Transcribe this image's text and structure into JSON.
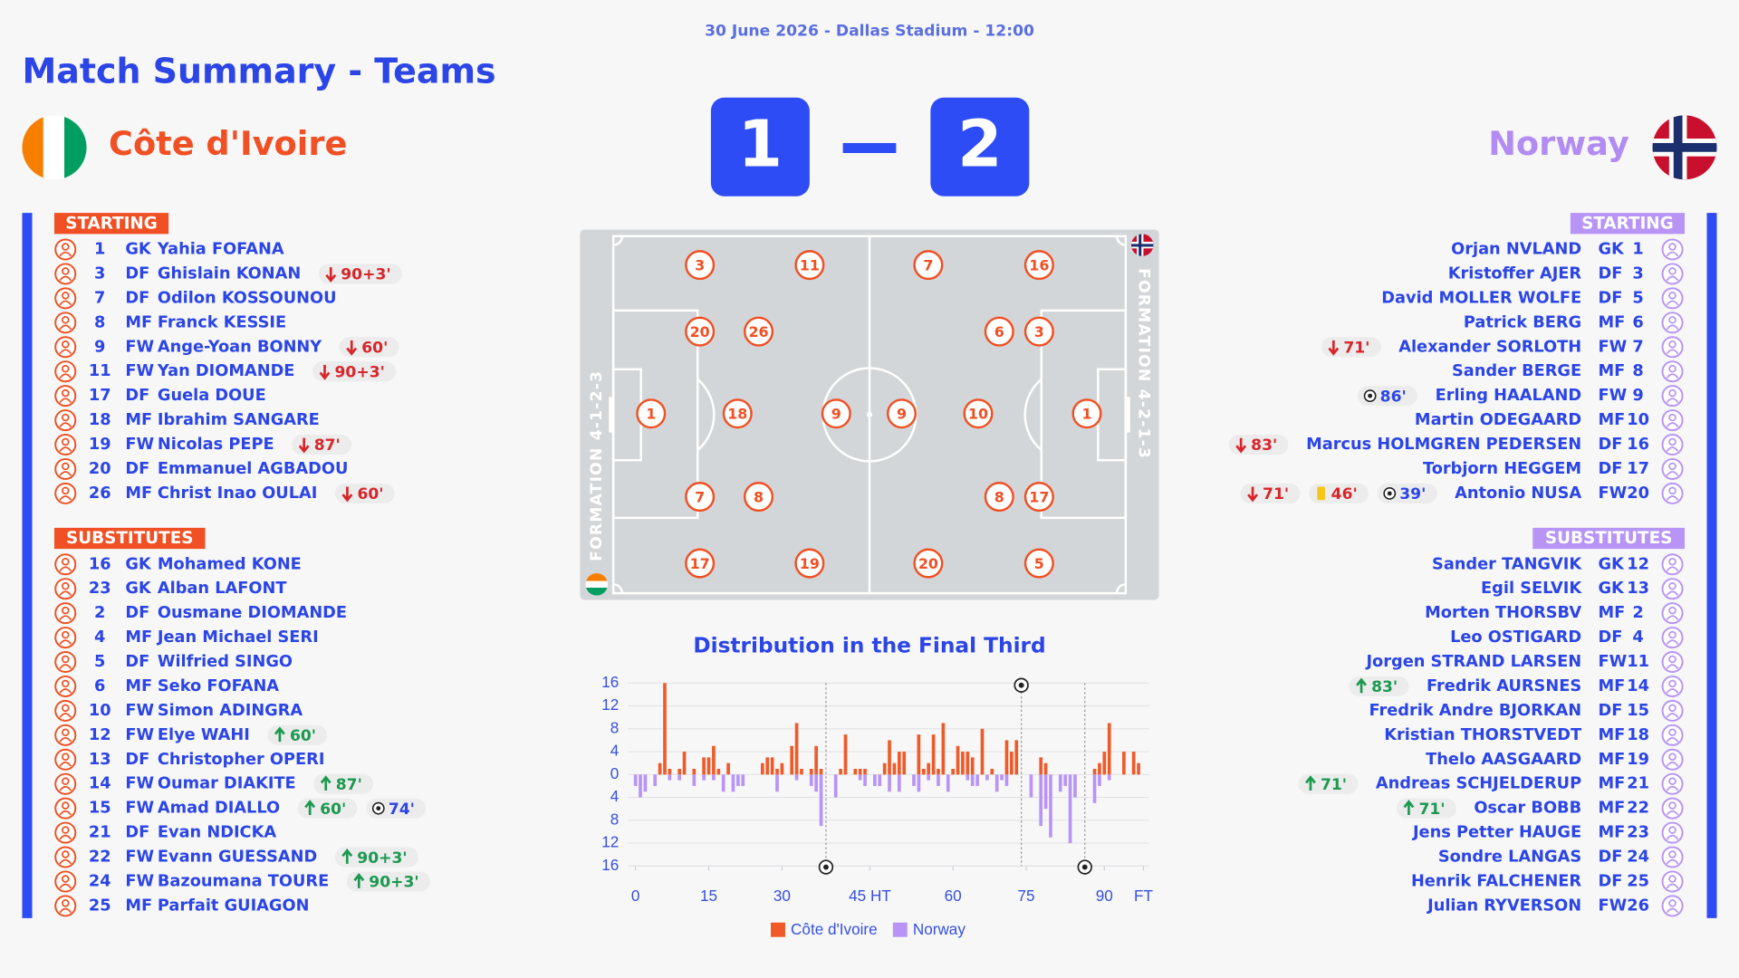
{
  "header": {
    "date_line": "30 June 2026 - Dallas Stadium - 12:00",
    "title": "Match Summary - Teams"
  },
  "score": {
    "home": 1,
    "away": 2
  },
  "home": {
    "name": "Côte d'Ivoire",
    "formation": "FORMATION 4-1-2-3",
    "starting_label": "STARTING",
    "substitutes_label": "SUBSTITUTES",
    "pitch_lines": [
      [
        1
      ],
      [
        3,
        20,
        7,
        17
      ],
      [
        18
      ],
      [
        26,
        8
      ],
      [
        11,
        9,
        19
      ]
    ],
    "starting": [
      {
        "number": 1,
        "position": "GK",
        "name": "Yahia FOFANA"
      },
      {
        "number": 3,
        "position": "DF",
        "name": "Ghislain KONAN",
        "events": [
          {
            "type": "out",
            "minute": "90+3'"
          }
        ]
      },
      {
        "number": 7,
        "position": "DF",
        "name": "Odilon KOSSOUNOU"
      },
      {
        "number": 8,
        "position": "MF",
        "name": "Franck KESSIE"
      },
      {
        "number": 9,
        "position": "FW",
        "name": "Ange-Yoan BONNY",
        "events": [
          {
            "type": "out",
            "minute": "60'"
          }
        ]
      },
      {
        "number": 11,
        "position": "FW",
        "name": "Yan DIOMANDE",
        "events": [
          {
            "type": "out",
            "minute": "90+3'"
          }
        ]
      },
      {
        "number": 17,
        "position": "DF",
        "name": "Guela DOUE"
      },
      {
        "number": 18,
        "position": "MF",
        "name": "Ibrahim SANGARE"
      },
      {
        "number": 19,
        "position": "FW",
        "name": "Nicolas PEPE",
        "events": [
          {
            "type": "out",
            "minute": "87'"
          }
        ]
      },
      {
        "number": 20,
        "position": "DF",
        "name": "Emmanuel AGBADOU"
      },
      {
        "number": 26,
        "position": "MF",
        "name": "Christ Inao OULAI",
        "events": [
          {
            "type": "out",
            "minute": "60'"
          }
        ]
      }
    ],
    "substitutes": [
      {
        "number": 16,
        "position": "GK",
        "name": "Mohamed KONE"
      },
      {
        "number": 23,
        "position": "GK",
        "name": "Alban LAFONT"
      },
      {
        "number": 2,
        "position": "DF",
        "name": "Ousmane DIOMANDE"
      },
      {
        "number": 4,
        "position": "MF",
        "name": "Jean Michael SERI"
      },
      {
        "number": 5,
        "position": "DF",
        "name": "Wilfried SINGO"
      },
      {
        "number": 6,
        "position": "MF",
        "name": "Seko FOFANA"
      },
      {
        "number": 10,
        "position": "FW",
        "name": "Simon ADINGRA"
      },
      {
        "number": 12,
        "position": "FW",
        "name": "Elye WAHI",
        "events": [
          {
            "type": "in",
            "minute": "60'"
          }
        ]
      },
      {
        "number": 13,
        "position": "DF",
        "name": "Christopher OPERI"
      },
      {
        "number": 14,
        "position": "FW",
        "name": "Oumar DIAKITE",
        "events": [
          {
            "type": "in",
            "minute": "87'"
          }
        ]
      },
      {
        "number": 15,
        "position": "FW",
        "name": "Amad DIALLO",
        "events": [
          {
            "type": "in",
            "minute": "60'"
          },
          {
            "type": "goal",
            "minute": "74'"
          }
        ]
      },
      {
        "number": 21,
        "position": "DF",
        "name": "Evan NDICKA"
      },
      {
        "number": 22,
        "position": "FW",
        "name": "Evann GUESSAND",
        "events": [
          {
            "type": "in",
            "minute": "90+3'"
          }
        ]
      },
      {
        "number": 24,
        "position": "FW",
        "name": "Bazoumana TOURE",
        "events": [
          {
            "type": "in",
            "minute": "90+3'"
          }
        ]
      },
      {
        "number": 25,
        "position": "MF",
        "name": "Parfait GUIAGON"
      }
    ]
  },
  "away": {
    "name": "Norway",
    "formation": "FORMATION 4-2-1-3",
    "starting_label": "STARTING",
    "substitutes_label": "SUBSTITUTES",
    "pitch_lines": [
      [
        1
      ],
      [
        16,
        3,
        17,
        5
      ],
      [
        6,
        8
      ],
      [
        10
      ],
      [
        7,
        9,
        20
      ]
    ],
    "starting": [
      {
        "number": 1,
        "position": "GK",
        "name": "Orjan NVLAND"
      },
      {
        "number": 3,
        "position": "DF",
        "name": "Kristoffer AJER"
      },
      {
        "number": 5,
        "position": "DF",
        "name": "David MOLLER WOLFE"
      },
      {
        "number": 6,
        "position": "MF",
        "name": "Patrick BERG"
      },
      {
        "number": 7,
        "position": "FW",
        "name": "Alexander SORLOTH",
        "events": [
          {
            "type": "out",
            "minute": "71'"
          }
        ]
      },
      {
        "number": 8,
        "position": "MF",
        "name": "Sander BERGE"
      },
      {
        "number": 9,
        "position": "FW",
        "name": "Erling HAALAND",
        "events": [
          {
            "type": "goal",
            "minute": "86'"
          }
        ]
      },
      {
        "number": 10,
        "position": "MF",
        "name": "Martin ODEGAARD"
      },
      {
        "number": 16,
        "position": "DF",
        "name": "Marcus HOLMGREN PEDERSEN",
        "events": [
          {
            "type": "out",
            "minute": "83'"
          }
        ]
      },
      {
        "number": 17,
        "position": "DF",
        "name": "Torbjorn HEGGEM"
      },
      {
        "number": 20,
        "position": "FW",
        "name": "Antonio NUSA",
        "events": [
          {
            "type": "out",
            "minute": "71'"
          },
          {
            "type": "yellow",
            "minute": "46'"
          },
          {
            "type": "goal",
            "minute": "39'"
          }
        ]
      }
    ],
    "substitutes": [
      {
        "number": 12,
        "position": "GK",
        "name": "Sander TANGVIK"
      },
      {
        "number": 13,
        "position": "GK",
        "name": "Egil SELVIK"
      },
      {
        "number": 2,
        "position": "MF",
        "name": "Morten THORSBV"
      },
      {
        "number": 4,
        "position": "DF",
        "name": "Leo OSTIGARD"
      },
      {
        "number": 11,
        "position": "FW",
        "name": "Jorgen STRAND LARSEN"
      },
      {
        "number": 14,
        "position": "MF",
        "name": "Fredrik AURSNES",
        "events": [
          {
            "type": "in",
            "minute": "83'"
          }
        ]
      },
      {
        "number": 15,
        "position": "DF",
        "name": "Fredrik Andre BJORKAN"
      },
      {
        "number": 18,
        "position": "MF",
        "name": "Kristian THORSTVEDT"
      },
      {
        "number": 19,
        "position": "MF",
        "name": "Thelo AASGAARD"
      },
      {
        "number": 21,
        "position": "MF",
        "name": "Andreas SCHJELDERUP",
        "events": [
          {
            "type": "in",
            "minute": "71'"
          }
        ]
      },
      {
        "number": 22,
        "position": "MF",
        "name": "Oscar BOBB",
        "events": [
          {
            "type": "in",
            "minute": "71'"
          }
        ]
      },
      {
        "number": 23,
        "position": "MF",
        "name": "Jens Petter HAUGE"
      },
      {
        "number": 24,
        "position": "DF",
        "name": "Sondre LANGAS"
      },
      {
        "number": 25,
        "position": "DF",
        "name": "Henrik FALCHENER"
      },
      {
        "number": 26,
        "position": "FW",
        "name": "Julian RYVERSON"
      }
    ]
  },
  "chart_data": {
    "type": "bar",
    "title": "Distribution in the Final Third",
    "x": [
      0,
      1,
      2,
      3,
      4,
      5,
      6,
      7,
      8,
      9,
      10,
      11,
      12,
      13,
      14,
      15,
      16,
      17,
      18,
      19,
      20,
      21,
      22,
      23,
      24,
      25,
      26,
      27,
      28,
      29,
      30,
      31,
      32,
      33,
      34,
      35,
      36,
      37,
      38,
      39,
      40,
      41,
      42,
      43,
      44,
      45,
      46,
      47,
      48,
      49,
      50,
      51,
      52,
      53,
      54,
      55,
      56,
      57,
      58,
      59,
      60,
      61,
      62,
      63,
      64,
      65,
      66,
      67,
      68,
      69,
      70,
      71,
      72,
      73,
      74,
      75,
      76,
      77,
      78,
      79,
      80,
      81,
      82,
      83,
      84,
      85,
      86,
      87,
      88,
      89,
      90,
      91,
      92,
      93,
      94,
      95,
      96,
      97,
      98,
      99,
      100,
      101,
      102,
      103
    ],
    "xlim": [
      0,
      104
    ],
    "xticks": [
      0,
      15,
      30,
      {
        "value": 48,
        "label": "45 HT"
      },
      {
        "value": 65,
        "label": "60"
      },
      {
        "value": 80,
        "label": "75"
      },
      {
        "value": 96,
        "label": "90"
      },
      {
        "value": 104,
        "label": "FT"
      }
    ],
    "ylim": [
      -16,
      16
    ],
    "yticks": [
      {
        "value": -16,
        "label": "16"
      },
      {
        "value": -12,
        "label": "12"
      },
      {
        "value": -8,
        "label": "8"
      },
      {
        "value": -4,
        "label": "4"
      },
      0,
      4,
      8,
      12,
      16
    ],
    "grid": true,
    "series": [
      {
        "name": "Côte d'Ivoire",
        "color": "#f05a28",
        "goals": [
          79
        ],
        "values": [
          0,
          0,
          0,
          0,
          0,
          2,
          16,
          1,
          0,
          1,
          4,
          0,
          1,
          0,
          3,
          3,
          5,
          1,
          0,
          2,
          0,
          0,
          0,
          0,
          0,
          0,
          2,
          3,
          3,
          1,
          2,
          0,
          5,
          9,
          1,
          0,
          1,
          5,
          1,
          0,
          0,
          0,
          1,
          7,
          0,
          1,
          1,
          1,
          0,
          0,
          0,
          2,
          6,
          2,
          4,
          4,
          0,
          0,
          7,
          1,
          2,
          7,
          1,
          9,
          0,
          1,
          5,
          4,
          4,
          3,
          0,
          8,
          0,
          1,
          0,
          0,
          6,
          4,
          6,
          0,
          0,
          0,
          0,
          3,
          2,
          0,
          0,
          0,
          0,
          0,
          0,
          0,
          0,
          0,
          1,
          2,
          4,
          9,
          0,
          0,
          4,
          0,
          4,
          2
        ]
      },
      {
        "name": "Norway",
        "color": "#b794f6",
        "goals": [
          39,
          92
        ],
        "values": [
          -2,
          -4,
          -3,
          0,
          -2,
          0,
          0,
          -1,
          0,
          -1,
          0,
          0,
          -2,
          0,
          -1,
          0,
          -1,
          0,
          -3,
          0,
          -3,
          -2,
          -2,
          0,
          0,
          0,
          0,
          0,
          0,
          -3,
          0,
          0,
          0,
          -1,
          0,
          0,
          -2,
          -3,
          -9,
          0,
          0,
          -4,
          0,
          0,
          0,
          0,
          -1,
          -2,
          0,
          -2,
          -2,
          0,
          -3,
          0,
          -3,
          0,
          0,
          -2,
          -3,
          0,
          -1,
          0,
          -2,
          0,
          -3,
          0,
          0,
          0,
          -1,
          -2,
          -2,
          0,
          -1,
          0,
          -3,
          -1,
          -2,
          0,
          0,
          0,
          0,
          -4,
          0,
          -9,
          -6,
          -11,
          0,
          -3,
          -2,
          -12,
          -4,
          0,
          0,
          0,
          -5,
          -2,
          0,
          -1,
          0,
          0,
          0,
          0,
          0,
          0
        ]
      }
    ]
  }
}
